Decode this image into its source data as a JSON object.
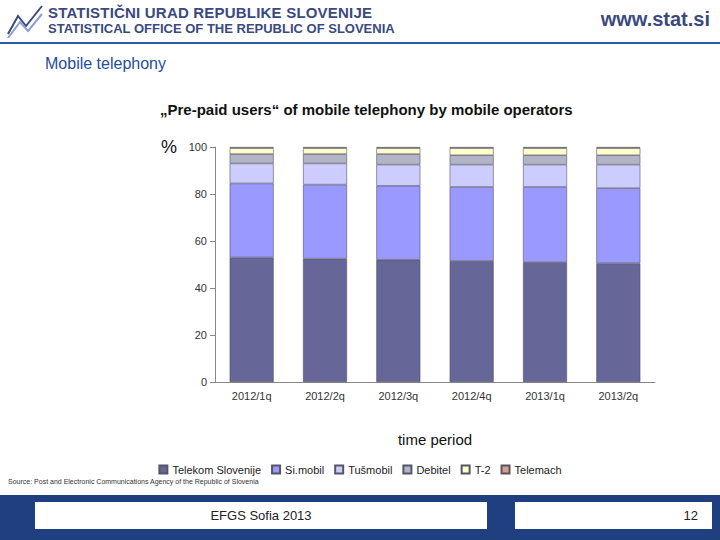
{
  "page": {
    "header": {
      "title": "STATISTIČNI URAD REPUBLIKE SLOVENIJE",
      "subtitle": "STATISTICAL OFFICE OF THE REPUBLIC OF SLOVENIA",
      "website": "www.stat.si"
    },
    "section": "Mobile telephony",
    "source": "Source: Post and Electronic Communications Agency of the Republic of Slovenia",
    "footer": {
      "event": "EFGS Sofia 2013",
      "page_number": "12"
    }
  },
  "chart_data": {
    "type": "bar",
    "title": "„Pre-paid users“ of mobile telephony by mobile operators",
    "y_label": "%",
    "x_label": "time period",
    "categories": [
      "2012/1q",
      "2012/2q",
      "2012/3q",
      "2012/4q",
      "2013/1q",
      "2013/2q"
    ],
    "series": [
      {
        "name": "Telekom Slovenije",
        "color": "#666699",
        "values": [
          53,
          52.5,
          52,
          51.5,
          51,
          50.5
        ]
      },
      {
        "name": "Si.mobil",
        "color": "#9999ff",
        "values": [
          31.5,
          31.5,
          31.5,
          31.5,
          32,
          32
        ]
      },
      {
        "name": "Tušmobil",
        "color": "#ccccff",
        "values": [
          8.5,
          9,
          9,
          9.5,
          9.5,
          10
        ]
      },
      {
        "name": "Debitel",
        "color": "#b4b4c8",
        "values": [
          4,
          4,
          4.5,
          4,
          4,
          4
        ]
      },
      {
        "name": "T-2",
        "color": "#ffffcc",
        "values": [
          2.5,
          2.5,
          2.5,
          3,
          3,
          3
        ]
      },
      {
        "name": "Telemach",
        "color": "#d9a08a",
        "values": [
          0.5,
          0.5,
          0.5,
          0.5,
          0.5,
          0.5
        ]
      }
    ],
    "ylim": [
      0,
      100
    ],
    "yticks": [
      0,
      20,
      40,
      60,
      80,
      100
    ],
    "stacked": true,
    "grid": false,
    "legend": "bottom"
  }
}
